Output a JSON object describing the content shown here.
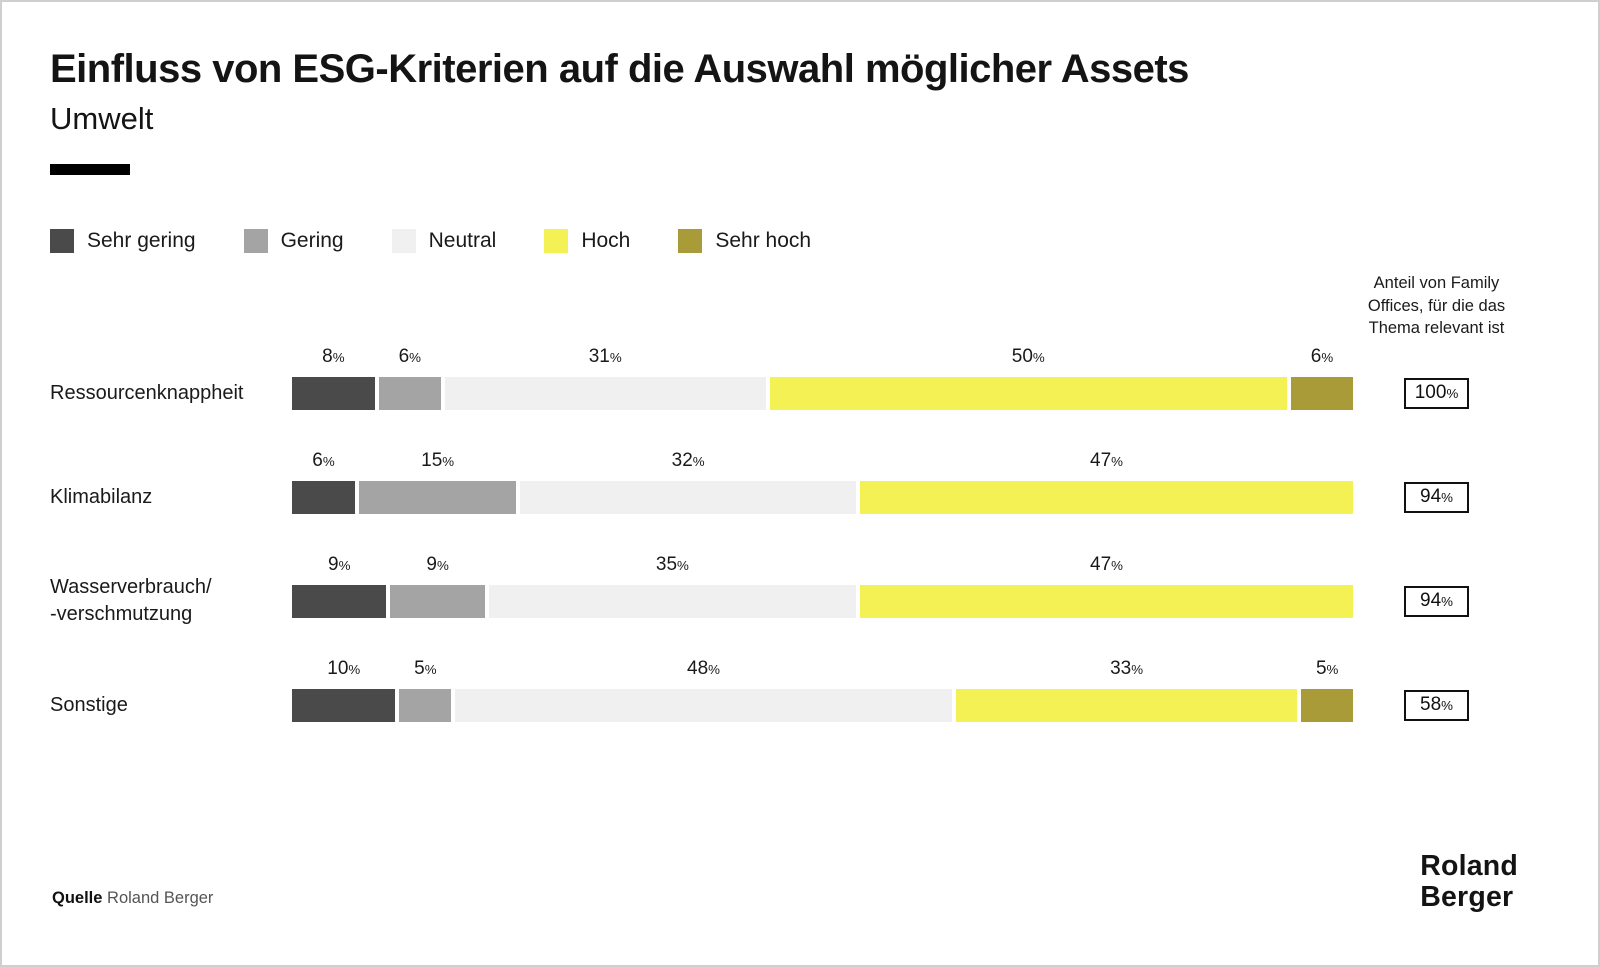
{
  "page": {
    "title": "Einfluss von ESG-Kriterien auf die Auswahl möglicher Assets",
    "subtitle": "Umwelt",
    "source_label": "Quelle",
    "source_value": "Roland Berger",
    "logo_line1": "Roland",
    "logo_line2": "Berger"
  },
  "chart_data": {
    "type": "bar",
    "orientation": "horizontal",
    "stacked": true,
    "unit": "%",
    "title": "Einfluss von ESG-Kriterien auf die Auswahl möglicher Assets",
    "subtitle": "Umwelt",
    "legend_position": "top",
    "grid": false,
    "colors": {
      "Sehr gering": "#4a4a4a",
      "Gering": "#a4a4a4",
      "Neutral": "#f0f0f0",
      "Hoch": "#f4f154",
      "Sehr hoch": "#a99b38"
    },
    "legend": [
      {
        "label": "Sehr gering",
        "color": "#4a4a4a"
      },
      {
        "label": "Gering",
        "color": "#a4a4a4"
      },
      {
        "label": "Neutral",
        "color": "#f0f0f0"
      },
      {
        "label": "Hoch",
        "color": "#f4f154"
      },
      {
        "label": "Sehr hoch",
        "color": "#a99b38"
      }
    ],
    "categories": [
      "Ressourcenknappheit",
      "Klimabilanz",
      "Wasserverbrauch/-verschmutzung",
      "Sonstige"
    ],
    "series": [
      {
        "name": "Sehr gering",
        "values": [
          8,
          6,
          9,
          10
        ]
      },
      {
        "name": "Gering",
        "values": [
          6,
          15,
          9,
          5
        ]
      },
      {
        "name": "Neutral",
        "values": [
          31,
          32,
          35,
          48
        ]
      },
      {
        "name": "Hoch",
        "values": [
          50,
          47,
          47,
          33
        ]
      },
      {
        "name": "Sehr hoch",
        "values": [
          6,
          0,
          0,
          5
        ]
      }
    ],
    "relevance_header_lines": [
      "Anteil von Family",
      "Offices, für die das",
      "Thema relevant ist"
    ],
    "relevance_values": [
      "100%",
      "94%",
      "94%",
      "58%"
    ],
    "rows": [
      {
        "label_lines": [
          "Ressourcenknappheit"
        ],
        "segments": [
          {
            "name": "Sehr gering",
            "value": 8,
            "label": "8%"
          },
          {
            "name": "Gering",
            "value": 6,
            "label": "6%"
          },
          {
            "name": "Neutral",
            "value": 31,
            "label": "31%"
          },
          {
            "name": "Hoch",
            "value": 50,
            "label": "50%"
          },
          {
            "name": "Sehr hoch",
            "value": 6,
            "label": "6%"
          }
        ],
        "relevance": "100%"
      },
      {
        "label_lines": [
          "Klimabilanz"
        ],
        "segments": [
          {
            "name": "Sehr gering",
            "value": 6,
            "label": "6%"
          },
          {
            "name": "Gering",
            "value": 15,
            "label": "15%"
          },
          {
            "name": "Neutral",
            "value": 32,
            "label": "32%"
          },
          {
            "name": "Hoch",
            "value": 47,
            "label": "47%"
          }
        ],
        "relevance": "94%"
      },
      {
        "label_lines": [
          "Wasserverbrauch/",
          "-verschmutzung"
        ],
        "segments": [
          {
            "name": "Sehr gering",
            "value": 9,
            "label": "9%"
          },
          {
            "name": "Gering",
            "value": 9,
            "label": "9%"
          },
          {
            "name": "Neutral",
            "value": 35,
            "label": "35%"
          },
          {
            "name": "Hoch",
            "value": 47,
            "label": "47%"
          }
        ],
        "relevance": "94%"
      },
      {
        "label_lines": [
          "Sonstige"
        ],
        "segments": [
          {
            "name": "Sehr gering",
            "value": 10,
            "label": "10%"
          },
          {
            "name": "Gering",
            "value": 5,
            "label": "5%"
          },
          {
            "name": "Neutral",
            "value": 48,
            "label": "48%"
          },
          {
            "name": "Hoch",
            "value": 33,
            "label": "33%"
          },
          {
            "name": "Sehr hoch",
            "value": 5,
            "label": "5%"
          }
        ],
        "relevance": "58%"
      }
    ]
  }
}
